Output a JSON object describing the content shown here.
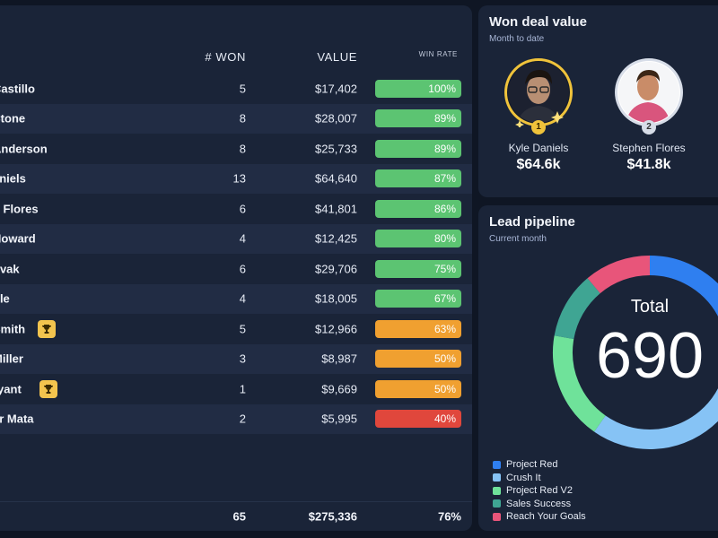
{
  "table": {
    "headers": {
      "won": "# WON",
      "value": "VALUE",
      "rate": "WIN RATE"
    },
    "rows": [
      {
        "name": "Castillo",
        "won": "5",
        "value": "$17,402",
        "rate": "100%",
        "rate_color": "#5cc472",
        "trophy": false
      },
      {
        "name": "Stone",
        "won": "8",
        "value": "$28,007",
        "rate": "89%",
        "rate_color": "#5cc472",
        "trophy": false
      },
      {
        "name": "Anderson",
        "won": "8",
        "value": "$25,733",
        "rate": "89%",
        "rate_color": "#5cc472",
        "trophy": false
      },
      {
        "name": "aniels",
        "won": "13",
        "value": "$64,640",
        "rate": "87%",
        "rate_color": "#5cc472",
        "trophy": false
      },
      {
        "name": "n Flores",
        "won": "6",
        "value": "$41,801",
        "rate": "86%",
        "rate_color": "#5cc472",
        "trophy": false
      },
      {
        "name": "Howard",
        "won": "4",
        "value": "$12,425",
        "rate": "80%",
        "rate_color": "#5cc472",
        "trophy": false
      },
      {
        "name": "ovak",
        "won": "6",
        "value": "$29,706",
        "rate": "75%",
        "rate_color": "#5cc472",
        "trophy": false
      },
      {
        "name": "ole",
        "won": "4",
        "value": "$18,005",
        "rate": "67%",
        "rate_color": "#5cc472",
        "trophy": false
      },
      {
        "name": "Smith",
        "won": "5",
        "value": "$12,966",
        "rate": "63%",
        "rate_color": "#f0a030",
        "trophy": true
      },
      {
        "name": "Miller",
        "won": "3",
        "value": "$8,987",
        "rate": "50%",
        "rate_color": "#f0a030",
        "trophy": false
      },
      {
        "name": "ryant",
        "won": "1",
        "value": "$9,669",
        "rate": "50%",
        "rate_color": "#f0a030",
        "trophy": true
      },
      {
        "name": "er Mata",
        "won": "2",
        "value": "$5,995",
        "rate": "40%",
        "rate_color": "#e0473c",
        "trophy": false
      }
    ],
    "totals": {
      "won": "65",
      "value": "$275,336",
      "rate": "76%"
    }
  },
  "won_deal": {
    "title": "Won deal value",
    "subtitle": "Month to date",
    "people": [
      {
        "name": "Kyle Daniels",
        "value": "$64.6k",
        "rank": "1",
        "ring_color": "#f0c33b"
      },
      {
        "name": "Stephen Flores",
        "value": "$41.8k",
        "rank": "2",
        "ring_color": "#d7dde8"
      }
    ]
  },
  "lead_pipeline": {
    "title": "Lead pipeline",
    "subtitle": "Current month",
    "total_label": "Total",
    "total_value": "690",
    "legend": [
      {
        "label": "Project Red",
        "color": "#2f7ff0"
      },
      {
        "label": "Crush It",
        "color": "#86c3f5"
      },
      {
        "label": "Project Red V2",
        "color": "#6fe29a"
      },
      {
        "label": "Sales Success",
        "color": "#3fa593"
      },
      {
        "label": "Reach Your Goals",
        "color": "#e8557a"
      }
    ]
  }
}
